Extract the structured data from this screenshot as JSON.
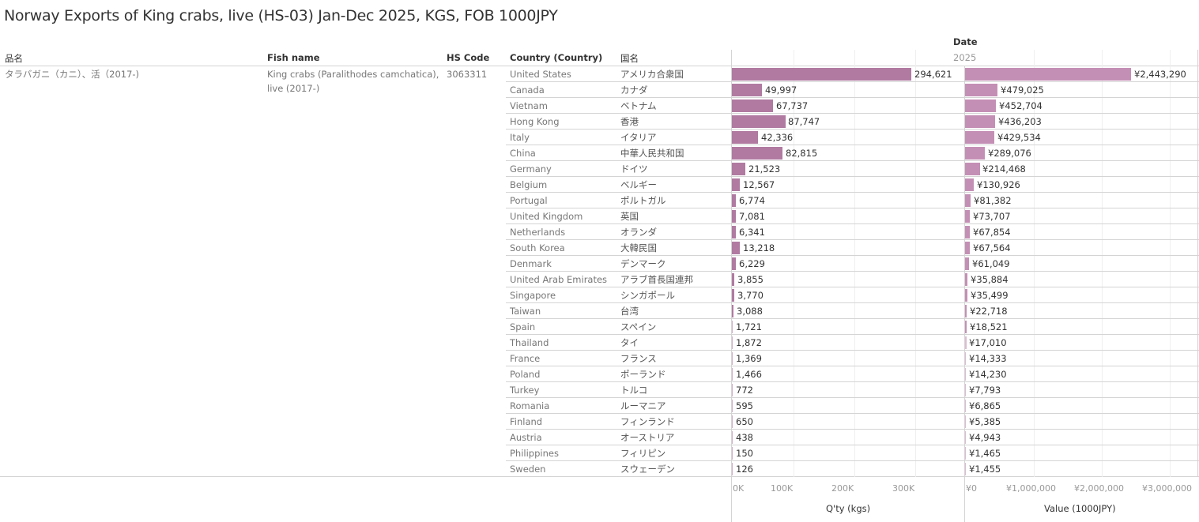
{
  "title": "Norway Exports of King crabs, live (HS-03) Jan-Dec 2025, KGS, FOB 1000JPY",
  "headers": {
    "jp_item_name": "品名",
    "fish_name": "Fish name",
    "hs_code": "HS Code",
    "country": "Country (Country)",
    "jp_country": "国名",
    "date": "Date",
    "year": "2025"
  },
  "product": {
    "jp_item_name": "タラバガニ（カニ）、活（2017-)",
    "fish_name_line1": "King crabs (Paralithodes camchatica),",
    "fish_name_line2": "live (2017-)",
    "hs_code": "3063311"
  },
  "colors": {
    "qty_bar": "#b07aa1",
    "value_bar": "#c48fb5"
  },
  "chart_data": {
    "type": "bar",
    "orientation": "horizontal",
    "title": "Norway Exports of King crabs, live (HS-03) Jan-Dec 2025, KGS, FOB 1000JPY",
    "categories": [
      "United States",
      "Canada",
      "Vietnam",
      "Hong Kong",
      "Italy",
      "China",
      "Germany",
      "Belgium",
      "Portugal",
      "United Kingdom",
      "Netherlands",
      "South Korea",
      "Denmark",
      "United Arab Emirates",
      "Singapore",
      "Taiwan",
      "Spain",
      "Thailand",
      "France",
      "Poland",
      "Turkey",
      "Romania",
      "Finland",
      "Austria",
      "Philippines",
      "Sweden"
    ],
    "categories_jp": [
      "アメリカ合衆国",
      "カナダ",
      "ベトナム",
      "香港",
      "イタリア",
      "中華人民共和国",
      "ドイツ",
      "ベルギー",
      "ポルトガル",
      "英国",
      "オランダ",
      "大韓民国",
      "デンマーク",
      "アラブ首長国連邦",
      "シンガポール",
      "台湾",
      "スペイン",
      "タイ",
      "フランス",
      "ポーランド",
      "トルコ",
      "ルーマニア",
      "フィンランド",
      "オーストリア",
      "フィリピン",
      "スウェーデン"
    ],
    "series": [
      {
        "name": "Q'ty (kgs)",
        "values": [
          294621,
          49997,
          67737,
          87747,
          42336,
          82815,
          21523,
          12567,
          6774,
          7081,
          6341,
          13218,
          6229,
          3855,
          3770,
          3088,
          1721,
          1872,
          1369,
          1466,
          772,
          595,
          650,
          438,
          150,
          126
        ],
        "labels": [
          "294,621",
          "49,997",
          "67,737",
          "87,747",
          "42,336",
          "82,815",
          "21,523",
          "12,567",
          "6,774",
          "7,081",
          "6,341",
          "13,218",
          "6,229",
          "3,855",
          "3,770",
          "3,088",
          "1,721",
          "1,872",
          "1,369",
          "1,466",
          "772",
          "595",
          "650",
          "438",
          "150",
          "126"
        ],
        "xlim": [
          0,
          372000
        ],
        "ticks": [
          0,
          100000,
          200000,
          300000
        ],
        "tick_labels": [
          "0K",
          "100K",
          "200K",
          "300K"
        ],
        "xlabel": "Q'ty (kgs)"
      },
      {
        "name": "Value (1000JPY)",
        "values": [
          2443290,
          479025,
          452704,
          436203,
          429534,
          289076,
          214468,
          130926,
          81382,
          73707,
          67854,
          67564,
          61049,
          35884,
          35499,
          22718,
          18521,
          17010,
          14333,
          14230,
          7793,
          6865,
          5385,
          4943,
          1465,
          1455
        ],
        "labels": [
          "¥2,443,290",
          "¥479,025",
          "¥452,704",
          "¥436,203",
          "¥429,534",
          "¥289,076",
          "¥214,468",
          "¥130,926",
          "¥81,382",
          "¥73,707",
          "¥67,854",
          "¥67,564",
          "¥61,049",
          "¥35,884",
          "¥35,499",
          "¥22,718",
          "¥18,521",
          "¥17,010",
          "¥14,333",
          "¥14,230",
          "¥7,793",
          "¥6,865",
          "¥5,385",
          "¥4,943",
          "¥1,465",
          "¥1,455"
        ],
        "xlim": [
          0,
          3380000
        ],
        "ticks": [
          0,
          1000000,
          2000000,
          3000000
        ],
        "tick_labels": [
          "¥0",
          "¥1,000,000",
          "¥2,000,000",
          "¥3,000,000"
        ],
        "xlabel": "Value (1000JPY)"
      }
    ],
    "grid": true,
    "legend": "none"
  }
}
